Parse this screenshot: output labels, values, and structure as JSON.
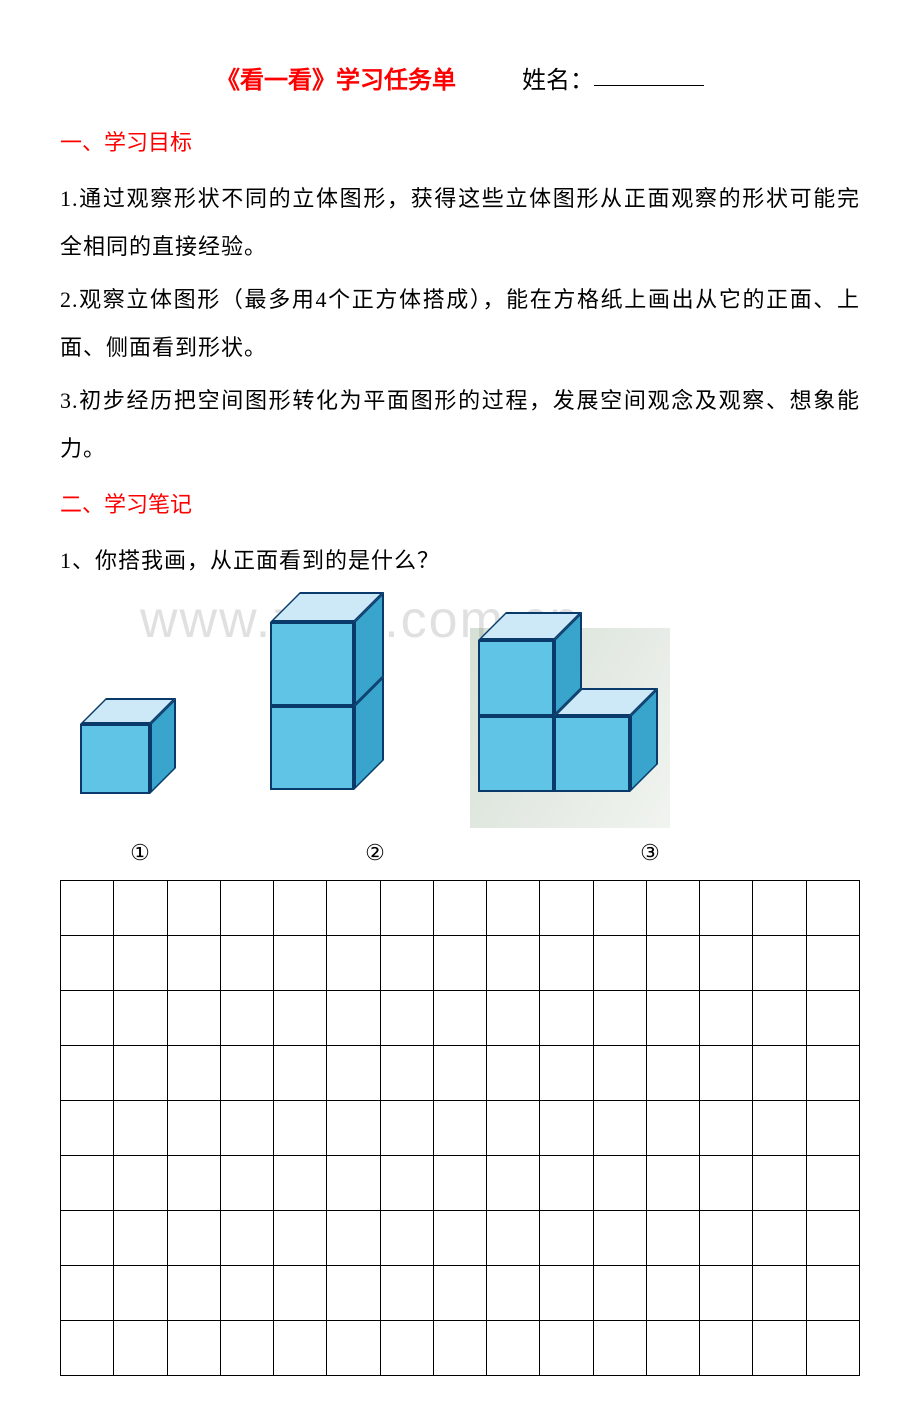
{
  "title": "《看一看》学习任务单",
  "name_label": "姓名：",
  "section1": {
    "heading": "一、学习目标",
    "items": [
      "1.通过观察形状不同的立体图形，获得这些立体图形从正面观察的形状可能完全相同的直接经验。",
      "2.观察立体图形（最多用4个正方体搭成），能在方格纸上画出从它的正面、上面、侧面看到形状。",
      "3.初步经历把空间图形转化为平面图形的过程，发展空间观念及观察、想象能力。"
    ]
  },
  "section2": {
    "heading": "二、学习笔记",
    "q1": "1、你搭我画，从正面看到的是什么？"
  },
  "figures": {
    "labels": [
      "①",
      "②",
      "③"
    ],
    "cube_colors": {
      "top": "#cde9f7",
      "front": "#5fc4e6",
      "side": "#3aa5cc",
      "edge": "#0a3a6a"
    },
    "fig1": {
      "unit": 70,
      "depth": 26,
      "cubes": [
        [
          0,
          0,
          0
        ]
      ]
    },
    "fig2": {
      "unit": 84,
      "depth": 30,
      "cubes": [
        [
          0,
          0,
          0
        ],
        [
          0,
          1,
          0
        ]
      ]
    },
    "fig3": {
      "unit": 76,
      "depth": 28,
      "cubes": [
        [
          0,
          0,
          0
        ],
        [
          1,
          0,
          0
        ],
        [
          0,
          1,
          0
        ]
      ]
    }
  },
  "grid": {
    "rows": 9,
    "cols": 15
  },
  "watermark": "www.zx​xk.com.cn"
}
